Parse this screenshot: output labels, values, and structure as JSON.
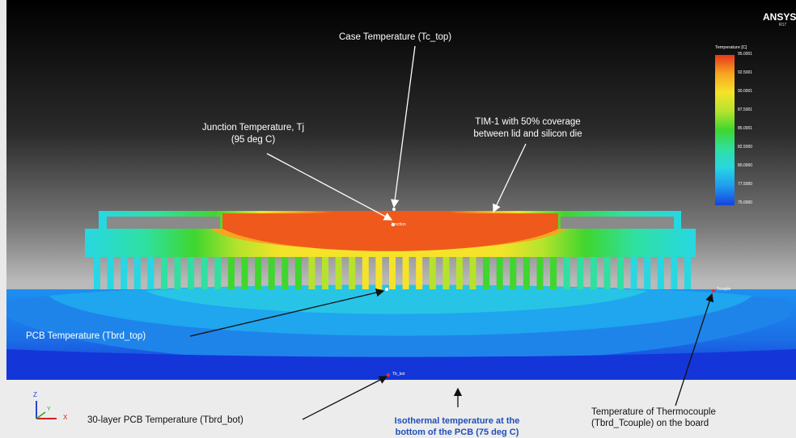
{
  "brand": {
    "name": "ANSYS",
    "version": "R17"
  },
  "legend": {
    "title": "Temperature [C]",
    "values": [
      "95.0001",
      "92.5001",
      "90.0001",
      "87.5001",
      "85.0001",
      "82.5000",
      "80.0000",
      "77.5000",
      "75.0000"
    ],
    "colors": [
      "#e8361c",
      "#f7a520",
      "#f5e32a",
      "#b5e32c",
      "#3fd62e",
      "#2fe0a0",
      "#27d7e3",
      "#1f9aee",
      "#1641e0"
    ]
  },
  "annotations": {
    "case_temp": "Case Temperature (Tc_top)",
    "junction_temp_line1": "Junction Temperature, Tj",
    "junction_temp_line2": "(95 deg C)",
    "tim_line1": "TIM-1 with 50% coverage",
    "tim_line2": "between lid and silicon die",
    "pcb_top": "PCB Temperature (Tbrd_top)",
    "pcb_bot": "30-layer PCB Temperature (Tbrd_bot)",
    "isothermal_line1": "Isothermal temperature at the",
    "isothermal_line2": "bottom of the PCB (75 deg C)",
    "thermocouple_line1": "Temperature of Thermocouple",
    "thermocouple_line2": "(Tbrd_Tcouple) on the board"
  },
  "probe_tags": {
    "junction": "Junction",
    "bottom": "Tb_bot",
    "tcouple": "Tcouple"
  },
  "axis_triad": {
    "z": "Z",
    "y": "Y",
    "x": "X"
  }
}
